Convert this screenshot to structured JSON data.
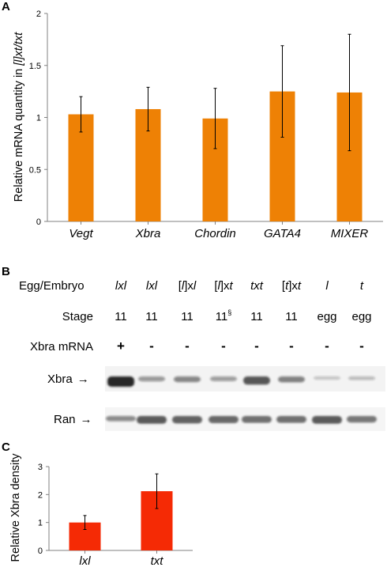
{
  "panel_labels": {
    "a": "A",
    "b": "B",
    "c": "C"
  },
  "colors": {
    "bar_a": "#ee8105",
    "bar_c": "#f52a05",
    "axis": "#808080",
    "band": "#1a1a1a"
  },
  "chart_data": [
    {
      "type": "bar",
      "panel": "A",
      "categories": [
        "Vegt",
        "Xbra",
        "Chordin",
        "GATA4",
        "MIXER"
      ],
      "values": [
        1.03,
        1.08,
        0.99,
        1.25,
        1.24
      ],
      "errors": [
        0.17,
        0.21,
        0.29,
        0.44,
        0.56
      ],
      "ylabel_parts": {
        "pre": "Relative mRNA quantity in ",
        "em1": "[l]",
        "em2": "xt/txt"
      },
      "ylim": [
        0,
        2
      ],
      "yticks": [
        "0",
        "0.5",
        "1",
        "1.5",
        "2"
      ],
      "grid": false
    },
    {
      "type": "bar",
      "panel": "C",
      "categories": [
        "lxl",
        "txt"
      ],
      "values": [
        1.0,
        2.12
      ],
      "errors": [
        0.25,
        0.62
      ],
      "ylabel": "Relative Xbra density",
      "ylim": [
        0,
        3
      ],
      "yticks": [
        "0",
        "1",
        "2",
        "3"
      ],
      "grid": false
    }
  ],
  "blot": {
    "row_labels": {
      "egg_embryo": "Egg/Embryo",
      "stage": "Stage",
      "mrna": "Xbra mRNA",
      "xbra": "Xbra",
      "ran": "Ran"
    },
    "arrow": "→",
    "lanes": [
      {
        "parts": [
          [
            "lxl",
            "i"
          ]
        ],
        "stage": "11",
        "mrna": "+",
        "xbra": 1.0,
        "ran": 0.45
      },
      {
        "parts": [
          [
            "lxl",
            "i"
          ]
        ],
        "stage": "11",
        "mrna": "-",
        "xbra": 0.32,
        "ran": 0.85
      },
      {
        "parts": [
          [
            "[",
            ""
          ],
          [
            "l",
            "i"
          ],
          [
            "]x",
            ""
          ],
          [
            "l",
            "i"
          ]
        ],
        "stage": "11",
        "mrna": "-",
        "xbra": 0.42,
        "ran": 0.8
      },
      {
        "parts": [
          [
            "[",
            ""
          ],
          [
            "l",
            "i"
          ],
          [
            "]x",
            ""
          ],
          [
            "t",
            "i"
          ]
        ],
        "stage": "11",
        "stage_sup": "§",
        "mrna": "-",
        "xbra": 0.3,
        "ran": 0.75
      },
      {
        "parts": [
          [
            "txt",
            "i"
          ]
        ],
        "stage": "11",
        "mrna": "-",
        "xbra": 0.72,
        "ran": 0.7
      },
      {
        "parts": [
          [
            "[",
            ""
          ],
          [
            "t",
            "i"
          ],
          [
            "]x",
            ""
          ],
          [
            "t",
            "i"
          ]
        ],
        "stage": "11",
        "mrna": "-",
        "xbra": 0.45,
        "ran": 0.7
      },
      {
        "parts": [
          [
            "l",
            "i"
          ]
        ],
        "stage": "egg",
        "mrna": "-",
        "xbra": 0.1,
        "ran": 0.85
      },
      {
        "parts": [
          [
            "t",
            "i"
          ]
        ],
        "stage": "egg",
        "mrna": "-",
        "xbra": 0.15,
        "ran": 0.65
      }
    ]
  }
}
